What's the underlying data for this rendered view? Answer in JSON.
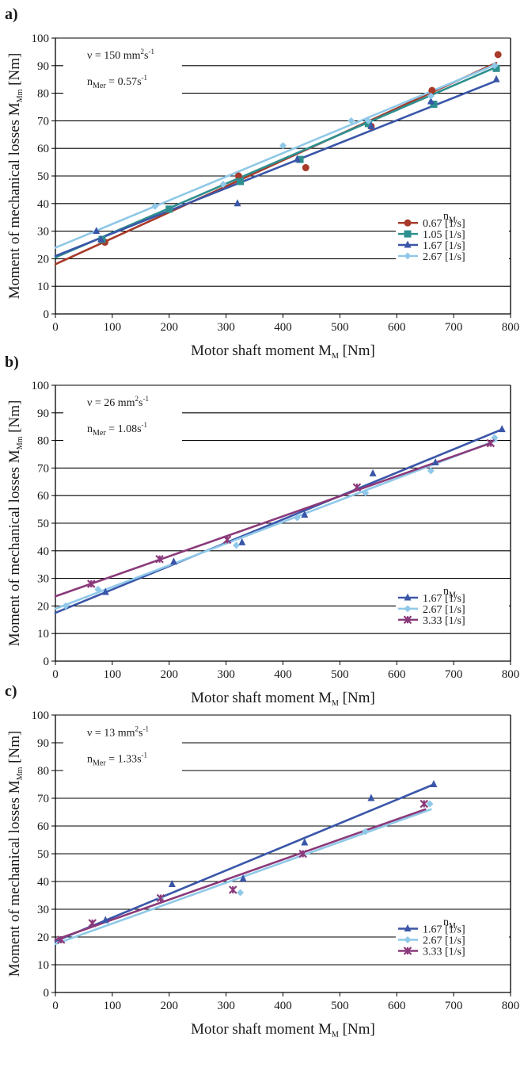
{
  "chart_data": [
    {
      "type": "scatter",
      "panel_label": "a)",
      "xlim": [
        0,
        800
      ],
      "ylim": [
        0,
        100
      ],
      "x_ticks": [
        0,
        100,
        200,
        300,
        400,
        500,
        600,
        700,
        800
      ],
      "y_ticks": [
        0,
        10,
        20,
        30,
        40,
        50,
        60,
        70,
        80,
        90,
        100
      ],
      "xlabel": {
        "main": "Motor shaft moment M",
        "sub": "M",
        "unit": " [Nm]"
      },
      "ylabel": {
        "main": "Moment of mechanical losses M",
        "sub": "Mm",
        "unit": " [Nm]"
      },
      "annotation": {
        "line1": {
          "pre": "ν = 150 mm",
          "sup1": "2",
          "mid": "s",
          "sup2": "-1"
        },
        "line2": {
          "pre": "n",
          "sub": "Mer",
          "post": " = 0.57s",
          "sup": "-1"
        }
      },
      "legend_title": {
        "main": "n",
        "sub": "M"
      },
      "grid": "horizontal",
      "legend_position": "bottom-right",
      "series": [
        {
          "name": "0.67 [1/s]",
          "color": "#a83a2a",
          "marker": "circle",
          "points": [
            [
              87,
              26
            ],
            [
              322,
              50
            ],
            [
              440,
              53
            ],
            [
              555,
              68
            ],
            [
              662,
              81
            ],
            [
              778,
              94
            ]
          ],
          "fit": [
            [
              0,
              18
            ],
            [
              775,
              91
            ]
          ]
        },
        {
          "name": "1.05 [1/s]",
          "color": "#2e8f8f",
          "marker": "square",
          "points": [
            [
              82,
              27
            ],
            [
              200,
              38
            ],
            [
              325,
              48
            ],
            [
              430,
              56
            ],
            [
              550,
              69
            ],
            [
              665,
              76
            ],
            [
              775,
              89
            ]
          ],
          "fit": [
            [
              0,
              20.5
            ],
            [
              775,
              89.5
            ]
          ]
        },
        {
          "name": "1.67 [1/s]",
          "color": "#3a56a8",
          "marker": "triangle",
          "points": [
            [
              72,
              30
            ],
            [
              80,
              27
            ],
            [
              320,
              40
            ],
            [
              425,
              56
            ],
            [
              555,
              68
            ],
            [
              660,
              77
            ],
            [
              775,
              85
            ]
          ],
          "fit": [
            [
              0,
              21
            ],
            [
              775,
              84.5
            ]
          ]
        },
        {
          "name": "2.67 [1/s]",
          "color": "#8fc8e8",
          "marker": "diamond",
          "points": [
            [
              175,
              39
            ],
            [
              295,
              47
            ],
            [
              400,
              61
            ],
            [
              520,
              70
            ],
            [
              550,
              70
            ],
            [
              660,
              79
            ],
            [
              772,
              90
            ]
          ],
          "fit": [
            [
              0,
              24
            ],
            [
              775,
              90.5
            ]
          ]
        }
      ]
    },
    {
      "type": "scatter",
      "panel_label": "b)",
      "xlim": [
        0,
        800
      ],
      "ylim": [
        0,
        100
      ],
      "x_ticks": [
        0,
        100,
        200,
        300,
        400,
        500,
        600,
        700,
        800
      ],
      "y_ticks": [
        0,
        10,
        20,
        30,
        40,
        50,
        60,
        70,
        80,
        90,
        100
      ],
      "xlabel": {
        "main": "Motor shaft moment M",
        "sub": "M",
        "unit": " [Nm]"
      },
      "ylabel": {
        "main": "Moment of mechanical losses M",
        "sub": "Mm",
        "unit": " [Nm]"
      },
      "annotation": {
        "line1": {
          "pre": "ν = 26 mm",
          "sup1": "2",
          "mid": "s",
          "sup2": "-1"
        },
        "line2": {
          "pre": "n",
          "sub": "Mer",
          "post": " = 1.08s",
          "sup": "-1"
        }
      },
      "legend_title": {
        "main": "n",
        "sub": "M"
      },
      "grid": "horizontal",
      "legend_position": "bottom-right",
      "series": [
        {
          "name": "1.67 [1/s]",
          "color": "#3a56a8",
          "marker": "triangle",
          "points": [
            [
              88,
              25
            ],
            [
              208,
              36
            ],
            [
              328,
              43
            ],
            [
              438,
              53
            ],
            [
              558,
              68
            ],
            [
              668,
              72
            ],
            [
              785,
              84
            ]
          ],
          "fit": [
            [
              0,
              17.5
            ],
            [
              785,
              84
            ]
          ]
        },
        {
          "name": "2.67 [1/s]",
          "color": "#8fc8e8",
          "marker": "diamond",
          "points": [
            [
              18,
              20
            ],
            [
              75,
              26
            ],
            [
              318,
              42
            ],
            [
              425,
              52
            ],
            [
              545,
              61
            ],
            [
              660,
              69
            ],
            [
              772,
              81
            ]
          ],
          "fit": [
            [
              0,
              19
            ],
            [
              775,
              80
            ]
          ]
        },
        {
          "name": "3.33 [1/s]",
          "color": "#8a3a7a",
          "marker": "star",
          "points": [
            [
              63,
              28
            ],
            [
              183,
              37
            ],
            [
              302,
              44
            ],
            [
              530,
              63
            ],
            [
              765,
              79
            ]
          ],
          "fit": [
            [
              0,
              23.5
            ],
            [
              765,
              79
            ]
          ]
        }
      ]
    },
    {
      "type": "scatter",
      "panel_label": "c)",
      "xlim": [
        0,
        800
      ],
      "ylim": [
        0,
        100
      ],
      "x_ticks": [
        0,
        100,
        200,
        300,
        400,
        500,
        600,
        700,
        800
      ],
      "y_ticks": [
        0,
        10,
        20,
        30,
        40,
        50,
        60,
        70,
        80,
        90,
        100
      ],
      "xlabel": {
        "main": "Motor shaft moment M",
        "sub": "M",
        "unit": " [Nm]"
      },
      "ylabel": {
        "main": "Moment of mechanical losses M",
        "sub": "Mm",
        "unit": " [Nm]"
      },
      "annotation": {
        "line1": {
          "pre": "ν = 13 mm",
          "sup1": "2",
          "mid": "s",
          "sup2": "-1"
        },
        "line2": {
          "pre": "n",
          "sub": "Mer",
          "post": " = 1.33s",
          "sup": "-1"
        }
      },
      "legend_title": {
        "main": "n",
        "sub": "M"
      },
      "grid": "horizontal",
      "legend_position": "bottom-right",
      "series": [
        {
          "name": "1.67 [1/s]",
          "color": "#3a56a8",
          "marker": "triangle",
          "points": [
            [
              88,
              26
            ],
            [
              205,
              39
            ],
            [
              330,
              41
            ],
            [
              438,
              54
            ],
            [
              555,
              70
            ],
            [
              665,
              75
            ]
          ],
          "fit": [
            [
              0,
              18.5
            ],
            [
              665,
              75
            ]
          ]
        },
        {
          "name": "2.67 [1/s]",
          "color": "#8fc8e8",
          "marker": "diamond",
          "points": [
            [
              185,
              34
            ],
            [
              325,
              36
            ],
            [
              545,
              58
            ],
            [
              658,
              68
            ]
          ],
          "fit": [
            [
              0,
              17.5
            ],
            [
              660,
              66
            ]
          ]
        },
        {
          "name": "3.33 [1/s]",
          "color": "#8a3a7a",
          "marker": "star",
          "points": [
            [
              10,
              19
            ],
            [
              65,
              25
            ],
            [
              185,
              34
            ],
            [
              312,
              37
            ],
            [
              435,
              50
            ],
            [
              648,
              68
            ]
          ],
          "fit": [
            [
              0,
              19
            ],
            [
              650,
              66
            ]
          ]
        }
      ]
    }
  ]
}
